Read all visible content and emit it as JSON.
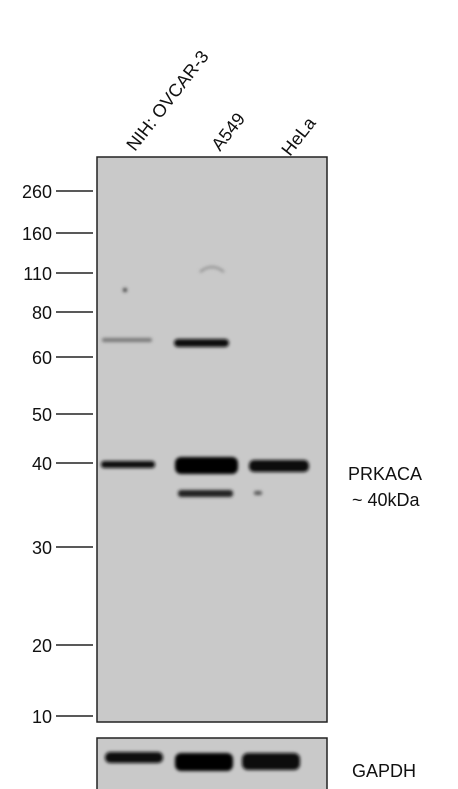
{
  "lanes": [
    "NIH: OVCAR-3",
    "A549",
    "HeLa"
  ],
  "markers": [
    "260",
    "160",
    "110",
    "80",
    "60",
    "50",
    "40",
    "30",
    "20",
    "10"
  ],
  "target": {
    "name": "PRKACA",
    "size": "~ 40kDa"
  },
  "loading_control": "GAPDH"
}
